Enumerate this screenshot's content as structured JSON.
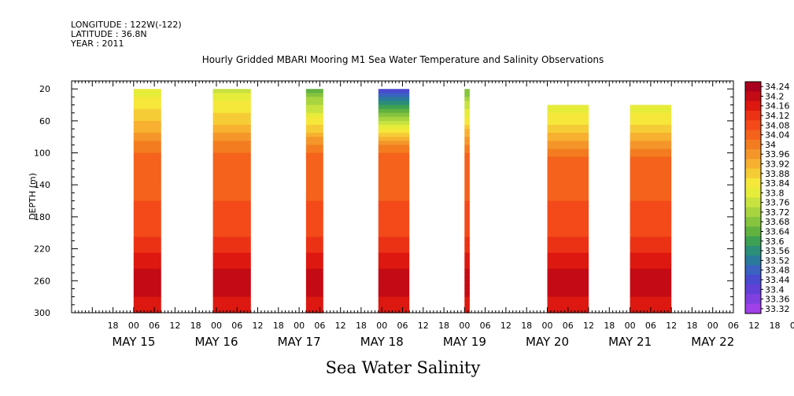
{
  "header": {
    "longitude": "LONGITUDE : 122W(-122)",
    "latitude": "LATITUDE : 36.8N",
    "year": "YEAR : 2011"
  },
  "chart_data": {
    "type": "heatmap",
    "title": "Hourly Gridded MBARI Mooring M1 Sea Water Temperature and Salinity Observations",
    "variable_title": "Sea Water Salinity",
    "ylabel": "DEPTH (m)",
    "ylim": [
      300,
      10
    ],
    "y_ticks": [
      20,
      60,
      100,
      140,
      180,
      220,
      260,
      300
    ],
    "x_hour_ticks": [
      "18",
      "00",
      "06",
      "12",
      "18",
      "00",
      "06",
      "12",
      "18",
      "00",
      "06",
      "12",
      "18",
      "00",
      "06",
      "12",
      "18",
      "00",
      "06",
      "12",
      "18",
      "00",
      "06",
      "12",
      "18",
      "00",
      "06",
      "12",
      "18",
      "00",
      "06",
      "12",
      "18",
      "00",
      "06",
      "12"
    ],
    "x_date_labels": [
      "MAY 15",
      "MAY 16",
      "MAY 17",
      "MAY 18",
      "MAY 19",
      "MAY 20",
      "MAY 21",
      "MAY 22"
    ],
    "colorbar_levels": [
      "34.24",
      "34.2",
      "34.16",
      "34.12",
      "34.08",
      "34.04",
      "34",
      "33.96",
      "33.92",
      "33.88",
      "33.84",
      "33.8",
      "33.76",
      "33.72",
      "33.68",
      "33.64",
      "33.6",
      "33.56",
      "33.52",
      "33.48",
      "33.44",
      "33.4",
      "33.36",
      "33.32"
    ],
    "colorbar_colors": [
      "#a8001e",
      "#c40a14",
      "#dc1810",
      "#ec3214",
      "#f44a1a",
      "#f4621c",
      "#f47c20",
      "#f4962a",
      "#f7b030",
      "#f6cc36",
      "#f5e83a",
      "#e6ec3a",
      "#c8e240",
      "#a8d440",
      "#86c43e",
      "#62b240",
      "#3ea052",
      "#2a8e78",
      "#2a7a9c",
      "#3a62c0",
      "#4a4ad0",
      "#6240d8",
      "#8040e0",
      "#a040e8"
    ],
    "profile": {
      "depth": [
        20,
        40,
        60,
        80,
        100,
        120,
        140,
        160,
        180,
        200,
        220,
        240,
        260,
        280,
        300
      ],
      "salinity": [
        33.8,
        33.87,
        33.92,
        33.98,
        34.04,
        34.06,
        34.07,
        34.08,
        34.09,
        34.11,
        34.15,
        34.19,
        34.22,
        34.2,
        34.18
      ]
    },
    "data_blocks": [
      {
        "start_hour": 24,
        "end_hour": 32,
        "top_depth": 20,
        "surface": 33.8
      },
      {
        "start_hour": 47,
        "end_hour": 58,
        "top_depth": 20,
        "surface": 33.78
      },
      {
        "start_hour": 74,
        "end_hour": 79,
        "top_depth": 20,
        "surface": 33.66
      },
      {
        "start_hour": 95,
        "end_hour": 104,
        "top_depth": 20,
        "surface": 33.46
      },
      {
        "start_hour": 120,
        "end_hour": 121.5,
        "top_depth": 20,
        "surface": 33.68
      },
      {
        "start_hour": 144,
        "end_hour": 156,
        "top_depth": 40,
        "surface": 33.8
      },
      {
        "start_hour": 168,
        "end_hour": 180,
        "top_depth": 40,
        "surface": 33.8
      }
    ]
  }
}
